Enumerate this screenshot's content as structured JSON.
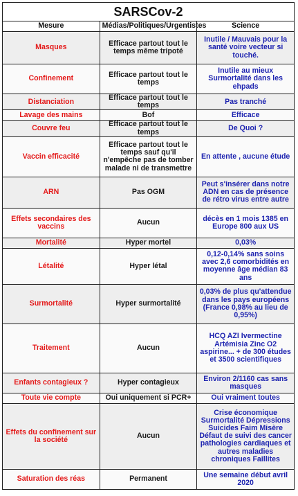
{
  "title": "SARSCov-2",
  "headers": [
    "Mesure",
    "Médias/Politiques/Urgentistes",
    "Science"
  ],
  "rows": [
    {
      "mesure": "Masques",
      "medias": "Efficace partout tout le temps même tripoté",
      "science": "Inutile / Mauvais pour la santé voire vecteur si touché."
    },
    {
      "mesure": "Confinement",
      "medias": "Efficace partout tout le temps",
      "science": "Inutile au mieux Surmortalité dans les ehpads"
    },
    {
      "mesure": "Distanciation",
      "medias": "Efficace partout tout le temps",
      "science": "Pas tranché"
    },
    {
      "mesure": "Lavage des mains",
      "medias": "Bof",
      "science": "Efficace"
    },
    {
      "mesure": "Couvre feu",
      "medias": "Efficace partout tout le temps",
      "science": "De Quoi ?"
    },
    {
      "mesure": "Vaccin efficacité",
      "medias": "Efficace partout tout le temps sauf qu'il n'empêche pas de tomber malade ni de transmettre",
      "science": "En attente , aucune étude"
    },
    {
      "mesure": "ARN",
      "medias": "Pas OGM",
      "science": "Peut s'insérer dans notre ADN en cas de présence de rétro virus entre autre"
    },
    {
      "mesure": "Effets secondaires des vaccins",
      "medias": "Aucun",
      "science": "décès en 1 mois 1385 en Europe 800 aux US"
    },
    {
      "mesure": "Mortalité",
      "medias": "Hyper mortel",
      "science": "0,03%"
    },
    {
      "mesure": "Létalité",
      "medias": "Hyper létal",
      "science": "0,12-0,14% sans soins avec 2,6 comorbidités en moyenne âge médian 83 ans"
    },
    {
      "mesure": "Surmortalité",
      "medias": "Hyper surmortalité",
      "science": "0,03% de plus qu'attendue dans les pays européens (France 0,98% au lieu de 0,95%)"
    },
    {
      "mesure": "Traitement",
      "medias": "Aucun",
      "science": "HCQ AZI Ivermectine Artémisia Zinc O2 aspirine... + de 300 études et 3500 scientifiques"
    },
    {
      "mesure": "Enfants contagieux ?",
      "medias": "Hyper contagieux",
      "science": "Environ 2/1160 cas sans masques"
    },
    {
      "mesure": "Toute vie compte",
      "medias": "Oui uniquement si PCR+",
      "science": "Oui vraiment toutes"
    },
    {
      "mesure": "Effets du confinement sur la société",
      "medias": "Aucun",
      "science": "Crise économique Surmortalité Dépressions Suicides Faim Misère Défaut de suivi des cancer pathologies cardiaques et autres maladies chroniques Faillites"
    },
    {
      "mesure": "Saturation des réas",
      "medias": "Permanent",
      "science": "Une semaine début avril 2020"
    }
  ]
}
